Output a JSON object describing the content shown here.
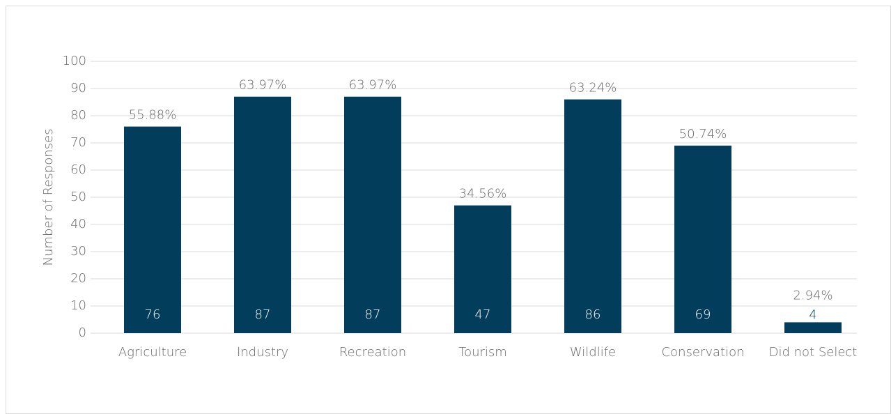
{
  "chart_data": {
    "type": "bar",
    "y_label": "Number of Responses",
    "categories": [
      "Agriculture",
      "Industry",
      "Recreation",
      "Tourism",
      "Wildlife",
      "Conservation",
      "Did not Select"
    ],
    "values": [
      76,
      87,
      87,
      47,
      86,
      69,
      4
    ],
    "percentage_labels": [
      "55.88%",
      "63.97%",
      "63.97%",
      "34.56%",
      "63.24%",
      "50.74%",
      "2.94%"
    ],
    "color": "#023e5c",
    "ylim": [
      0,
      100
    ],
    "yticks": [
      0,
      10,
      20,
      30,
      40,
      50,
      60,
      70,
      80,
      90,
      100
    ],
    "grid": true
  }
}
